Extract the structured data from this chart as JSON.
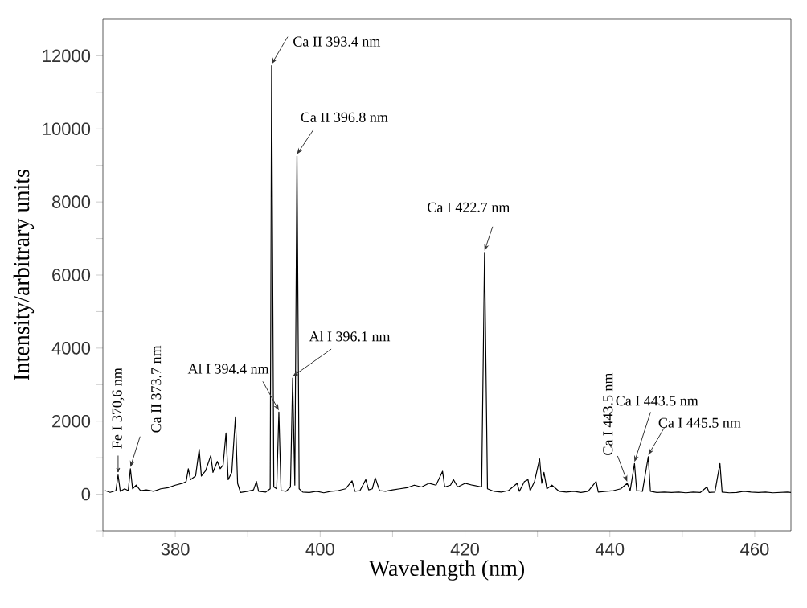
{
  "chart_data": {
    "type": "line",
    "xlabel": "Wavelength (nm)",
    "ylabel": "Intensity/arbitrary units",
    "color": "#000000",
    "xlim": [
      370,
      465
    ],
    "ylim": [
      -1000,
      13000
    ],
    "xticks": [
      {
        "value": 370,
        "label": null
      },
      380,
      {
        "value": 390,
        "label": null
      },
      400,
      {
        "value": 410,
        "label": null
      },
      420,
      {
        "value": 430,
        "label": null
      },
      440,
      {
        "value": 450,
        "label": null
      },
      460
    ],
    "yticks": [
      {
        "value": -1000,
        "label": null
      },
      0,
      {
        "value": 1000,
        "label": null
      },
      2000,
      {
        "value": 3000,
        "label": null
      },
      4000,
      {
        "value": 5000,
        "label": null
      },
      6000,
      {
        "value": 7000,
        "label": null
      },
      8000,
      {
        "value": 9000,
        "label": null
      },
      10000,
      {
        "value": 11000,
        "label": null
      },
      12000
    ],
    "x": [
      370.3,
      371,
      371.8,
      372.1,
      372.4,
      373,
      373.5,
      373.8,
      374.1,
      374.6,
      375.2,
      376,
      377,
      378,
      379,
      380,
      381,
      381.5,
      381.8,
      382.1,
      382.8,
      383.3,
      383.6,
      384.2,
      384.9,
      385.2,
      385.8,
      386.2,
      386.6,
      387,
      387.3,
      387.8,
      388.3,
      388.6,
      389,
      390,
      390.8,
      391.2,
      391.5,
      392.5,
      393.1,
      393.3,
      393.6,
      394,
      394.3,
      394.6,
      395.3,
      395.9,
      396.2,
      396.5,
      396.8,
      397.1,
      397.6,
      398.5,
      399.5,
      400.5,
      401.5,
      402.5,
      403.5,
      404.4,
      404.8,
      405.5,
      406.3,
      406.7,
      407.2,
      407.6,
      408.2,
      409,
      410,
      411,
      412,
      413,
      414,
      415,
      416,
      416.9,
      417.2,
      418,
      418.4,
      419,
      420,
      421,
      422.3,
      422.7,
      423.1,
      424,
      425,
      426,
      427.2,
      427.5,
      428.2,
      428.7,
      429,
      429.6,
      430.3,
      430.6,
      430.9,
      431.3,
      432,
      433,
      434,
      435,
      436,
      437,
      438.1,
      438.4,
      439.5,
      440.5,
      441.5,
      442.4,
      442.8,
      443.4,
      443.7,
      444.5,
      445.3,
      445.6,
      446.5,
      447.5,
      448.5,
      449.5,
      450.5,
      451.5,
      452.5,
      453.4,
      453.7,
      454.5,
      455.2,
      455.5,
      456.5,
      457.5,
      458.5,
      459.5,
      460.5,
      461.5,
      462.5,
      463.5,
      464.5,
      465
    ],
    "values": [
      100,
      50,
      100,
      530,
      80,
      150,
      100,
      700,
      150,
      250,
      100,
      120,
      80,
      150,
      180,
      250,
      300,
      350,
      700,
      400,
      500,
      1230,
      500,
      650,
      1060,
      600,
      900,
      700,
      800,
      1680,
      400,
      600,
      2120,
      300,
      50,
      80,
      120,
      350,
      80,
      60,
      150,
      11730,
      200,
      150,
      2250,
      100,
      80,
      200,
      3180,
      250,
      9260,
      150,
      60,
      50,
      80,
      40,
      80,
      100,
      150,
      370,
      80,
      100,
      400,
      120,
      150,
      450,
      100,
      80,
      120,
      150,
      180,
      250,
      200,
      300,
      250,
      630,
      200,
      250,
      400,
      200,
      300,
      250,
      200,
      6620,
      150,
      80,
      60,
      100,
      300,
      80,
      350,
      400,
      100,
      350,
      970,
      300,
      600,
      150,
      250,
      80,
      60,
      80,
      50,
      80,
      350,
      60,
      80,
      100,
      150,
      300,
      100,
      840,
      100,
      80,
      1030,
      80,
      50,
      60,
      50,
      60,
      40,
      60,
      50,
      200,
      50,
      60,
      840,
      60,
      40,
      50,
      80,
      60,
      50,
      60,
      40,
      50,
      60,
      50
    ],
    "annotations": [
      {
        "text": "Fe I 370,6  nm",
        "x": 372.1,
        "y": 530
      },
      {
        "text": "Ca II  373.7 nm",
        "x": 373.8,
        "y": 700
      },
      {
        "text": "Ca II 393.4 nm",
        "x": 393.3,
        "y": 11730
      },
      {
        "text": "Ca II 396.8 nm",
        "x": 396.8,
        "y": 9260
      },
      {
        "text": "Al I 394.4 nm",
        "x": 394.3,
        "y": 2250
      },
      {
        "text": "Al I 396.1 nm",
        "x": 396.2,
        "y": 3180
      },
      {
        "text": "Ca I 422.7 nm",
        "x": 422.7,
        "y": 6620
      },
      {
        "text": "Ca I 443.5  nm",
        "x": 442.4,
        "y": 300
      },
      {
        "text": "Ca I 443.5 nm",
        "x": 443.4,
        "y": 840
      },
      {
        "text": "Ca I 445.5 nm",
        "x": 445.3,
        "y": 1030
      }
    ]
  }
}
